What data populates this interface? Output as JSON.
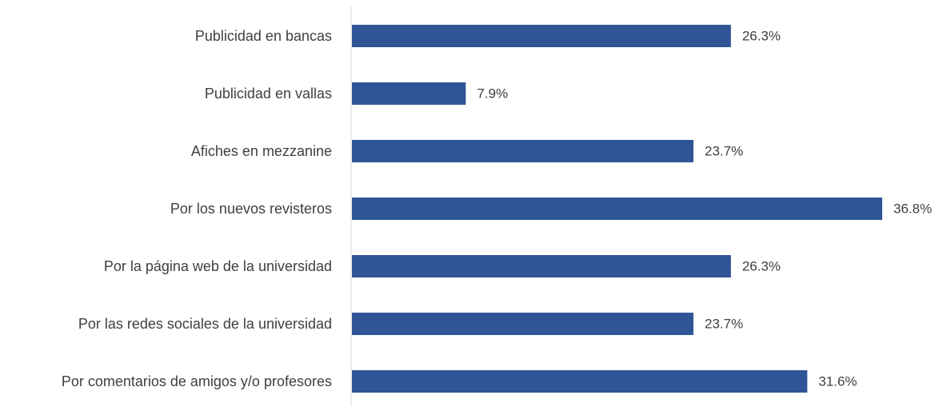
{
  "chart_data": {
    "type": "bar",
    "orientation": "horizontal",
    "title": "",
    "xlabel": "",
    "ylabel": "",
    "categories": [
      "Publicidad en bancas",
      "Publicidad en vallas",
      "Afiches en mezzanine",
      "Por los nuevos revisteros",
      "Por la página web de la universidad",
      "Por las redes sociales de la universidad",
      "Por comentarios de amigos y/o profesores"
    ],
    "values": [
      26.3,
      7.9,
      23.7,
      36.8,
      26.3,
      23.7,
      31.6
    ],
    "value_labels": [
      "26.3%",
      "7.9%",
      "23.7%",
      "36.8%",
      "26.3%",
      "23.7%",
      "31.6%"
    ],
    "unit": "%",
    "xlim": [
      0,
      36.8
    ],
    "grid": false,
    "legend": "none",
    "colors": {
      "bar": "#2F5597",
      "axis": "#D9D9D9",
      "text": "#404040"
    }
  }
}
